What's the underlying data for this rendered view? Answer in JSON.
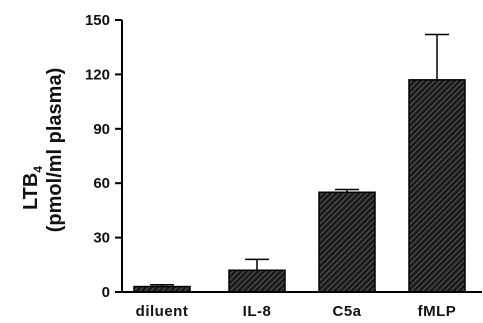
{
  "chart_data": {
    "type": "bar",
    "title": "",
    "ylabel": {
      "line1_main": "LTB",
      "line1_sub": "4",
      "line2": "(pmol/ml plasma)"
    },
    "xlabel": "",
    "categories": [
      "diluent",
      "IL-8",
      "C5a",
      "fMLP"
    ],
    "values": [
      3,
      12,
      55,
      117
    ],
    "errors": [
      1,
      6,
      1.5,
      25
    ],
    "ylim": [
      0,
      150
    ],
    "yticks": [
      0,
      30,
      60,
      90,
      120,
      150
    ],
    "grid": false,
    "legend": "none",
    "colors": {
      "bar_fill": "#1a1a1a",
      "bar_hatch": "#6a6a6a",
      "axis": "#000000"
    }
  }
}
